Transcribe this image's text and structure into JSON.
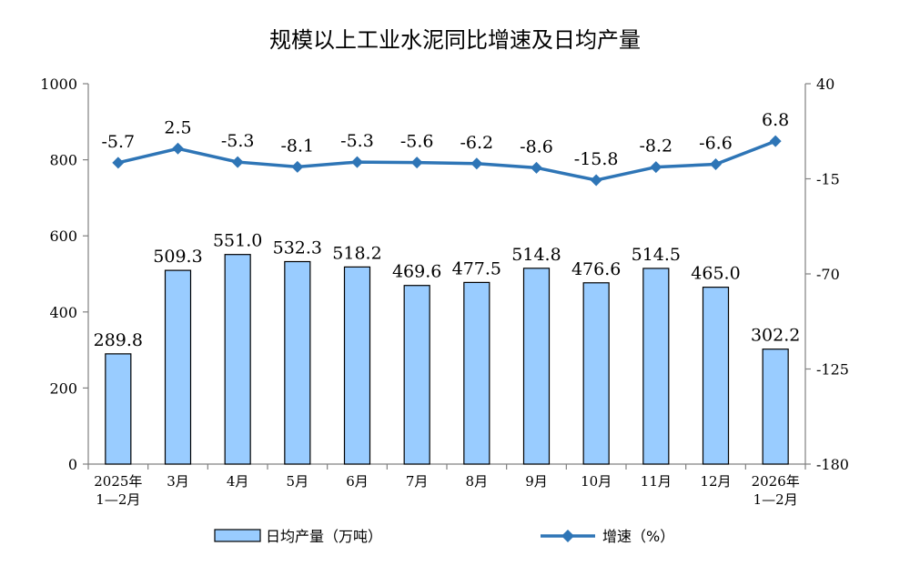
{
  "chart_data": {
    "type": "bar",
    "title": "规模以上工业水泥同比增速及日均产量",
    "categories": [
      [
        "2025年",
        "1—2月"
      ],
      [
        "3月"
      ],
      [
        "4月"
      ],
      [
        "5月"
      ],
      [
        "6月"
      ],
      [
        "7月"
      ],
      [
        "8月"
      ],
      [
        "9月"
      ],
      [
        "10月"
      ],
      [
        "11月"
      ],
      [
        "12月"
      ],
      [
        "2026年",
        "1—2月"
      ]
    ],
    "series": [
      {
        "name": "日均产量（万吨）",
        "type": "bar",
        "axis": "left",
        "color": "#99CCFF",
        "values": [
          289.8,
          509.3,
          551.0,
          532.3,
          518.2,
          469.6,
          477.5,
          514.8,
          476.6,
          514.5,
          465.0,
          302.2
        ],
        "labels": [
          "289.8",
          "509.3",
          "551.0",
          "532.3",
          "518.2",
          "469.6",
          "477.5",
          "514.8",
          "476.6",
          "514.5",
          "465.0",
          "302.2"
        ]
      },
      {
        "name": "增速（%）",
        "type": "line",
        "axis": "right",
        "color": "#2E75B6",
        "marker": "diamond",
        "values": [
          -5.7,
          2.5,
          -5.3,
          -8.1,
          -5.3,
          -5.6,
          -6.2,
          -8.6,
          -15.8,
          -8.2,
          -6.6,
          6.8
        ],
        "labels": [
          "-5.7",
          "2.5",
          "-5.3",
          "-8.1",
          "-5.3",
          "-5.6",
          "-6.2",
          "-8.6",
          "-15.8",
          "-8.2",
          "-6.6",
          "6.8"
        ]
      }
    ],
    "y_left": {
      "min": 0,
      "max": 1000,
      "ticks": [
        0,
        200,
        400,
        600,
        800,
        1000
      ]
    },
    "y_right": {
      "min": -180,
      "max": 40,
      "ticks": [
        -180,
        -125,
        -70,
        -15,
        40
      ]
    },
    "grid": false,
    "legend_position": "bottom"
  }
}
